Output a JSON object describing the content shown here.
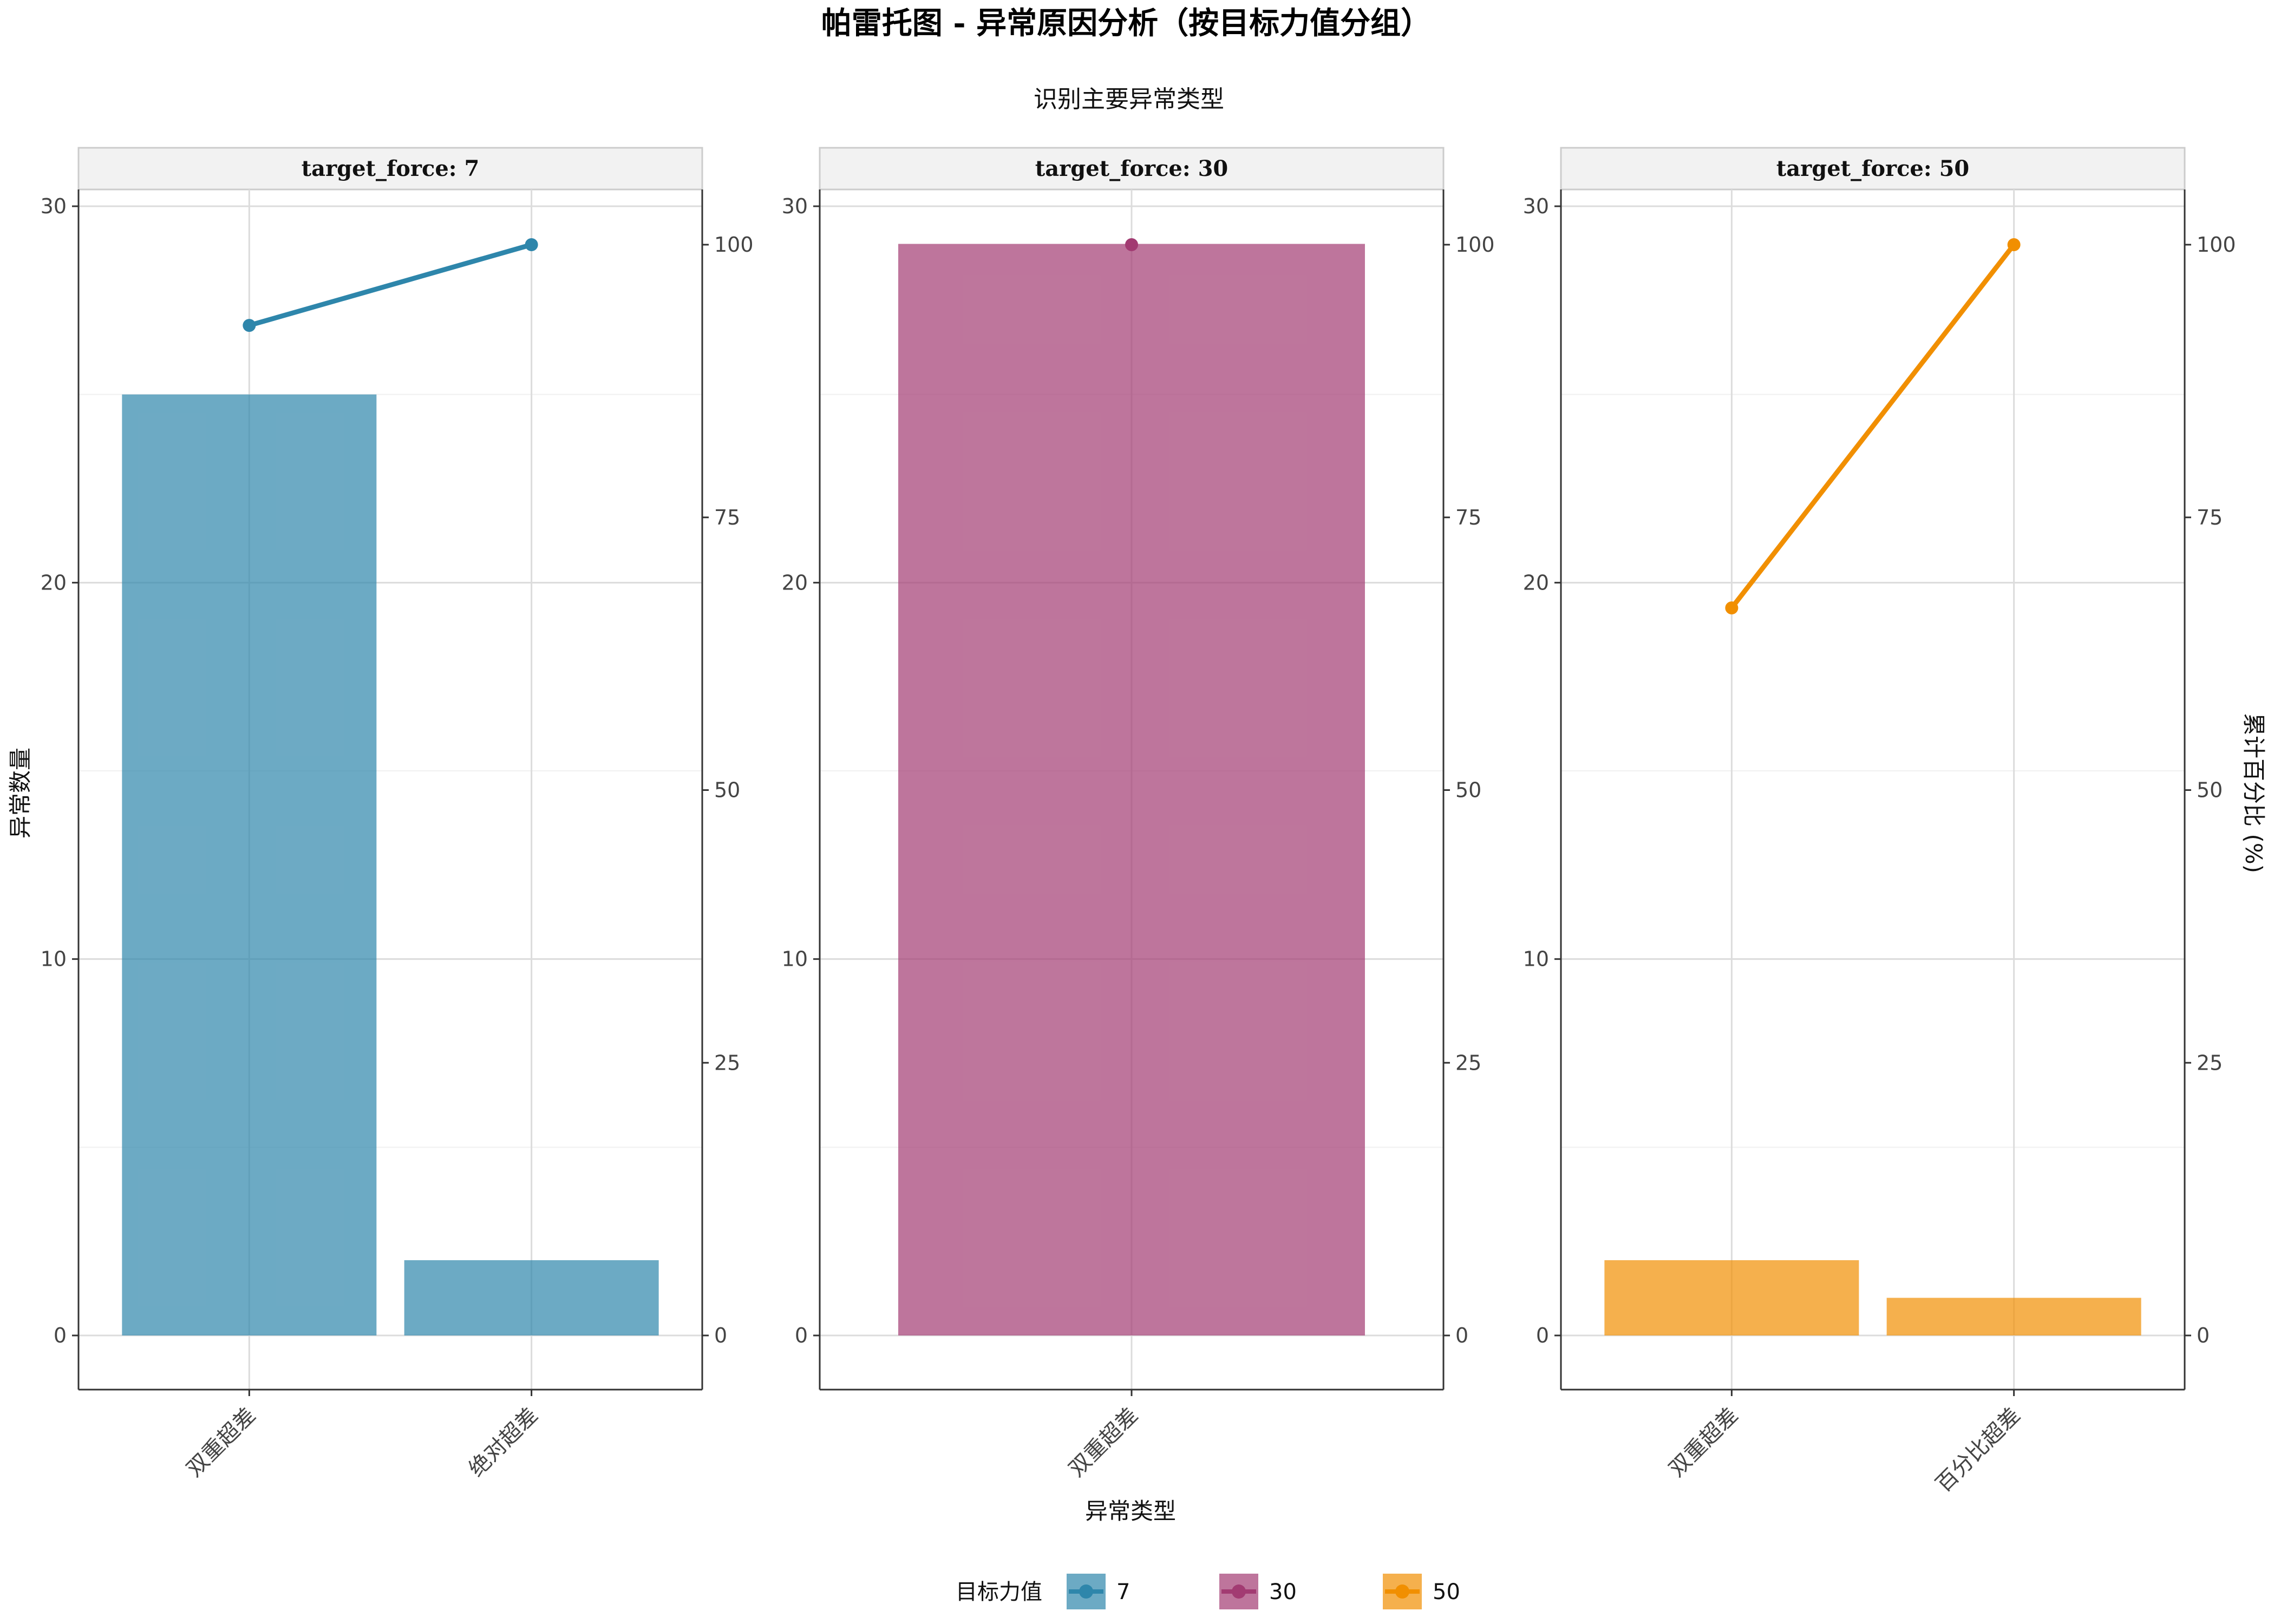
{
  "chart_data": {
    "type": "bar",
    "title": "帕雷托图 - 异常原因分析（按目标力值分组）",
    "subtitle": "识别主要异常类型",
    "xlabel": "异常类型",
    "ylabel": "异常数量",
    "y2label": "累计百分比 (%)",
    "ylim": [
      0,
      30
    ],
    "y_ticks": [
      0,
      10,
      20,
      30
    ],
    "y2lim": [
      0,
      100
    ],
    "y2_ticks": [
      0,
      25,
      50,
      75,
      100
    ],
    "grid": true,
    "legend": {
      "title": "目标力值",
      "position": "bottom",
      "entries": [
        {
          "label": "7",
          "color": "#2E86AB"
        },
        {
          "label": "30",
          "color": "#A23B72"
        },
        {
          "label": "50",
          "color": "#F18F01"
        }
      ]
    },
    "panels": [
      {
        "strip": "target_force: 7",
        "color": "#2E86AB",
        "categories": [
          "双重超差",
          "绝对超差"
        ],
        "counts": [
          25,
          2
        ],
        "cumulative_pct": [
          92.6,
          100
        ]
      },
      {
        "strip": "target_force: 30",
        "color": "#A23B72",
        "categories": [
          "双重超差"
        ],
        "counts": [
          29
        ],
        "cumulative_pct": [
          100
        ]
      },
      {
        "strip": "target_force: 50",
        "color": "#F18F01",
        "categories": [
          "双重超差",
          "百分比超差"
        ],
        "counts": [
          2,
          1
        ],
        "cumulative_pct": [
          66.7,
          100
        ]
      }
    ]
  }
}
